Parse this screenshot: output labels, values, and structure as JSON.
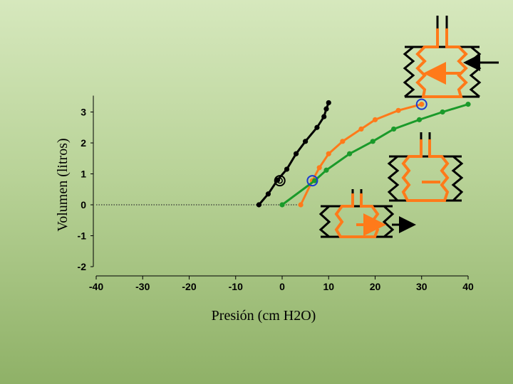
{
  "chart_data": {
    "type": "line",
    "title": "",
    "xlabel": "Presión  (cm H2O)",
    "ylabel": "Volumen  (litros)",
    "xlim": [
      -40,
      40
    ],
    "ylim": [
      -2,
      3.3
    ],
    "x_ticks": [
      "-40",
      "-30",
      "-20",
      "-10",
      "0",
      "10",
      "20",
      "30",
      "40"
    ],
    "y_ticks": [
      "-2",
      "-1",
      "0",
      "1",
      "2",
      "3"
    ],
    "grid": false,
    "series": [
      {
        "color": "#000000",
        "x": [
          -5,
          -3,
          -1,
          1,
          3,
          5,
          7.5,
          9,
          9.5,
          10
        ],
        "y": [
          0,
          0.35,
          0.8,
          1.15,
          1.65,
          2.05,
          2.5,
          2.85,
          3.1,
          3.3
        ]
      },
      {
        "color": "#ff7a1a",
        "x": [
          4,
          6.5,
          8,
          10,
          13,
          17,
          20,
          25,
          30
        ],
        "y": [
          0,
          0.78,
          1.2,
          1.65,
          2.05,
          2.45,
          2.75,
          3.05,
          3.25
        ]
      },
      {
        "color": "#1a9a2a",
        "x": [
          0,
          7,
          9.5,
          14.5,
          19.5,
          24,
          29.5,
          34.5,
          40
        ],
        "y": [
          0,
          0.78,
          1.12,
          1.65,
          2.05,
          2.45,
          2.75,
          3.0,
          3.25
        ]
      }
    ],
    "reference_line": {
      "y": 0,
      "x_from": -40,
      "x_to": 4,
      "style": "dotted"
    },
    "markers": [
      {
        "x": -0.5,
        "y": 0.78,
        "color": "#000000",
        "style": "double-circle"
      },
      {
        "x": 6.5,
        "y": 0.78,
        "color": "#1a3ad0",
        "style": "circle"
      },
      {
        "x": 30,
        "y": 3.25,
        "color": "#1a3ad0",
        "style": "circle"
      }
    ]
  },
  "decorations": {
    "bellows": [
      {
        "name": "bellows-top",
        "arrow_direction": "left"
      },
      {
        "name": "bellows-middle",
        "arrow_direction": "none"
      },
      {
        "name": "bellows-bottom",
        "arrow_direction": "right"
      }
    ],
    "colors": {
      "orange": "#ff7a1a",
      "green": "#1a9a2a",
      "ink": "#000000"
    }
  }
}
